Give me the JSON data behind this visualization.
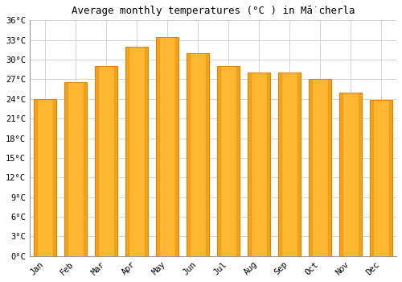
{
  "title": "Average monthly temperatures (°C ) in Mā̇cherla",
  "months": [
    "Jan",
    "Feb",
    "Mar",
    "Apr",
    "May",
    "Jun",
    "Jul",
    "Aug",
    "Sep",
    "Oct",
    "Nov",
    "Dec"
  ],
  "values": [
    24.0,
    26.5,
    29.0,
    32.0,
    33.5,
    31.0,
    29.0,
    28.0,
    28.0,
    27.0,
    25.0,
    23.8
  ],
  "bar_color": "#FFA500",
  "bar_edge_color": "#CC8800",
  "ylim": [
    0,
    36
  ],
  "ytick_step": 3,
  "background_color": "#ffffff",
  "grid_color": "#cccccc",
  "title_fontsize": 9,
  "tick_fontsize": 7.5
}
